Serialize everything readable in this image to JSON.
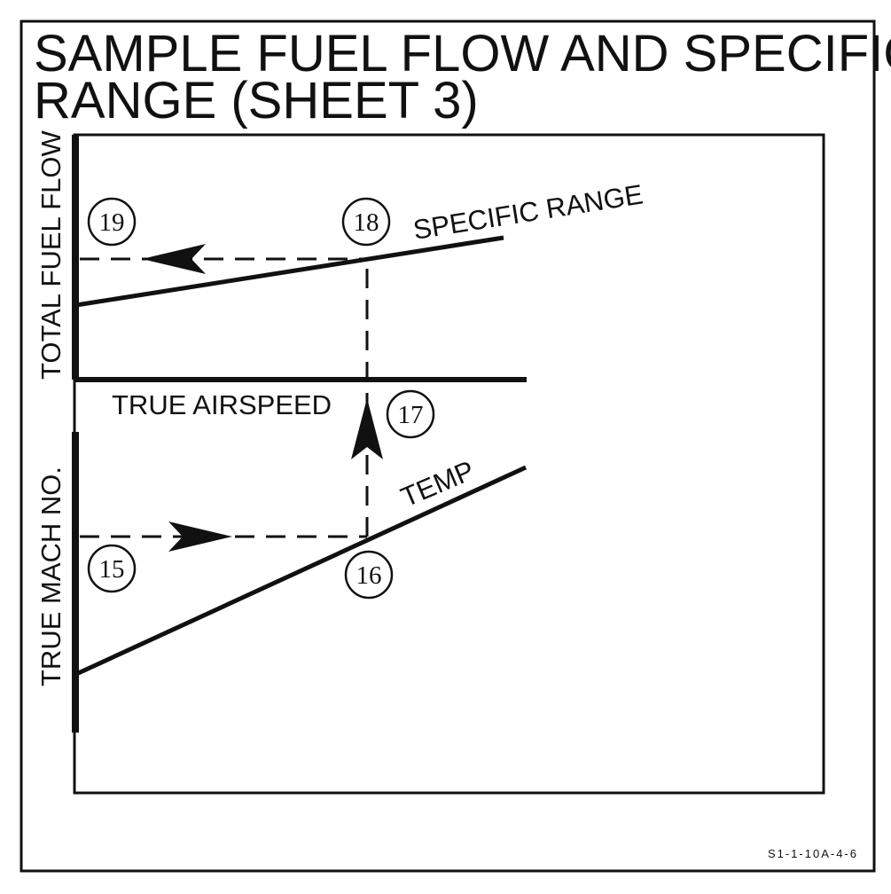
{
  "title": {
    "line1": "SAMPLE FUEL FLOW AND SPECIFIC",
    "line2": "RANGE (SHEET 3)"
  },
  "axes": {
    "upper_y": "TOTAL FUEL FLOW",
    "lower_y": "TRUE MACH NO.",
    "shared_x": "TRUE AIRSPEED"
  },
  "curves": {
    "specific_range": "SPECIFIC RANGE",
    "temp": "TEMP"
  },
  "steps": [
    "15",
    "16",
    "17",
    "18",
    "19"
  ],
  "figure_code": "S1-1-10A-4-6"
}
